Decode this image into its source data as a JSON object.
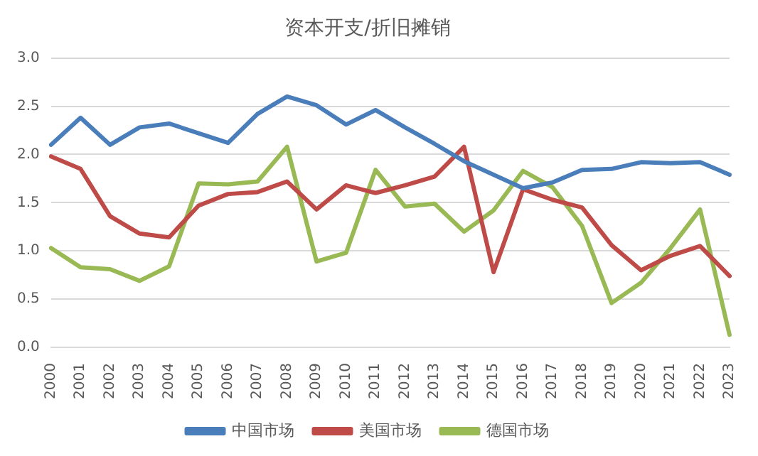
{
  "chart_data": {
    "type": "line",
    "title": "资本开支/折旧摊销",
    "categories": [
      "2000",
      "2001",
      "2002",
      "2003",
      "2004",
      "2005",
      "2006",
      "2007",
      "2008",
      "2009",
      "2010",
      "2011",
      "2012",
      "2013",
      "2014",
      "2015",
      "2016",
      "2017",
      "2018",
      "2019",
      "2020",
      "2021",
      "2022",
      "2023"
    ],
    "series": [
      {
        "name": "中国市场",
        "color": "#4a7ebb",
        "values": [
          2.1,
          2.38,
          2.1,
          2.28,
          2.32,
          2.22,
          2.12,
          2.42,
          2.6,
          2.51,
          2.31,
          2.46,
          2.28,
          2.11,
          1.93,
          1.79,
          1.65,
          1.71,
          1.84,
          1.85,
          1.92,
          1.91,
          1.92,
          1.79
        ]
      },
      {
        "name": "美国市场",
        "color": "#be4b48",
        "values": [
          1.98,
          1.85,
          1.36,
          1.18,
          1.14,
          1.47,
          1.59,
          1.61,
          1.72,
          1.43,
          1.68,
          1.6,
          1.68,
          1.77,
          2.08,
          0.78,
          1.64,
          1.53,
          1.45,
          1.06,
          0.8,
          0.95,
          1.05,
          0.74
        ]
      },
      {
        "name": "德国市场",
        "color": "#98b954",
        "values": [
          1.03,
          0.83,
          0.81,
          0.69,
          0.84,
          1.7,
          1.69,
          1.72,
          2.08,
          0.89,
          0.98,
          1.84,
          1.46,
          1.49,
          1.2,
          1.42,
          1.83,
          1.66,
          1.26,
          0.46,
          0.67,
          1.03,
          1.43,
          0.13
        ]
      }
    ],
    "ylim": [
      0,
      3
    ],
    "yticks": [
      {
        "value": 0,
        "label": "0.0"
      },
      {
        "value": 0.5,
        "label": "0.5"
      },
      {
        "value": 1,
        "label": "1.0"
      },
      {
        "value": 1.5,
        "label": "1.5"
      },
      {
        "value": 2,
        "label": "2.0"
      },
      {
        "value": 2.5,
        "label": "2.5"
      },
      {
        "value": 3,
        "label": "3.0"
      }
    ],
    "grid": "y",
    "legend": "bottom",
    "marker": "none",
    "line_style": "solid"
  }
}
